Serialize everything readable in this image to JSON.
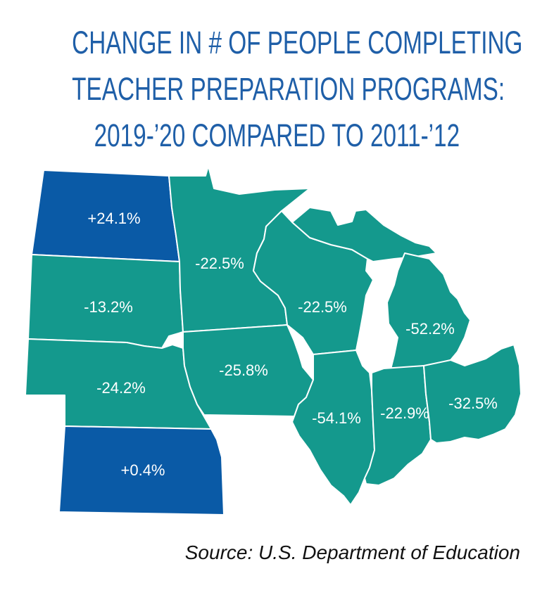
{
  "title": {
    "line1": "CHANGE IN # OF PEOPLE COMPLETING",
    "line2": "TEACHER PREPARATION PROGRAMS:",
    "line3": "2019-’20 COMPARED TO 2011-’12"
  },
  "colors": {
    "increase": "#0a5aa6",
    "decrease": "#14998d",
    "title": "#1f5fa8",
    "border": "#ffffff"
  },
  "states": [
    {
      "id": "north-dakota",
      "value": "+24.1%"
    },
    {
      "id": "south-dakota",
      "value": "-13.2%"
    },
    {
      "id": "nebraska",
      "value": "-24.2%"
    },
    {
      "id": "kansas",
      "value": "+0.4%"
    },
    {
      "id": "minnesota",
      "value": "-22.5%"
    },
    {
      "id": "iowa",
      "value": "-25.8%"
    },
    {
      "id": "wisconsin",
      "value": "-22.5%"
    },
    {
      "id": "illinois",
      "value": "-54.1%"
    },
    {
      "id": "michigan",
      "value": "-52.2%"
    },
    {
      "id": "indiana",
      "value": "-22.9%"
    },
    {
      "id": "ohio",
      "value": "-32.5%"
    }
  ],
  "source": "Source: U.S. Department of Education"
}
